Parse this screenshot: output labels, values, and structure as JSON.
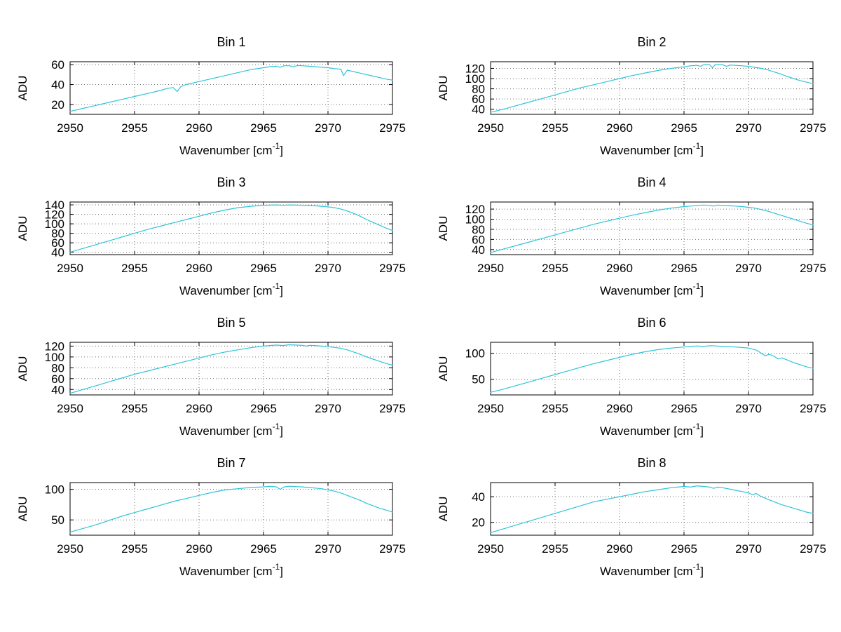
{
  "page": {
    "background": "#ffffff"
  },
  "xlabel_parts": {
    "main": "Wavenumber [cm",
    "sup": "-1",
    "close": "]"
  },
  "chart_data": [
    {
      "type": "line",
      "title": "Bin 1",
      "ylabel": "ADU",
      "xlabel": "Wavenumber [cm⁻¹]",
      "xlim": [
        2950,
        2975
      ],
      "ylim": [
        10,
        63
      ],
      "xticks": [
        2950,
        2955,
        2960,
        2965,
        2970,
        2975
      ],
      "yticks": [
        20,
        40,
        60
      ],
      "grid": true,
      "line_color": "#2cc5d8",
      "x": [
        2950,
        2951,
        2952,
        2953,
        2954,
        2955,
        2956,
        2957,
        2957.5,
        2958,
        2958.3,
        2958.6,
        2959,
        2960,
        2961,
        2962,
        2963,
        2964,
        2964.5,
        2965,
        2965.5,
        2966,
        2966.3,
        2966.6,
        2967,
        2967.3,
        2967.6,
        2968,
        2968.5,
        2969,
        2969.5,
        2970,
        2970.5,
        2971,
        2971.2,
        2971.5,
        2972,
        2972.5,
        2973,
        2973.5,
        2974,
        2974.5,
        2975
      ],
      "y": [
        13,
        16,
        19,
        22,
        25,
        28,
        31,
        34,
        36,
        37,
        33,
        38,
        40,
        43,
        46,
        49,
        52,
        55,
        56,
        57,
        58,
        58.5,
        57.5,
        59,
        59,
        57.8,
        59.2,
        59,
        58.5,
        58,
        57.5,
        57,
        56,
        55.5,
        49,
        54.5,
        53,
        51.5,
        50,
        48.5,
        47,
        45.5,
        44.5
      ]
    },
    {
      "type": "line",
      "title": "Bin 2",
      "ylabel": "ADU",
      "xlabel": "Wavenumber [cm⁻¹]",
      "xlim": [
        2950,
        2975
      ],
      "ylim": [
        30,
        133
      ],
      "xticks": [
        2950,
        2955,
        2960,
        2965,
        2970,
        2975
      ],
      "yticks": [
        40,
        60,
        80,
        100,
        120
      ],
      "grid": true,
      "line_color": "#2cc5d8",
      "x": [
        2950,
        2951,
        2952,
        2953,
        2954,
        2955,
        2956,
        2957,
        2958,
        2959,
        2960,
        2961,
        2962,
        2963,
        2964,
        2965,
        2965.5,
        2966,
        2966.3,
        2966.5,
        2967,
        2967.2,
        2967.4,
        2968,
        2968.3,
        2968.6,
        2969,
        2969.5,
        2970,
        2970.5,
        2971,
        2971.5,
        2972,
        2972.5,
        2973,
        2973.5,
        2974,
        2974.5,
        2975
      ],
      "y": [
        34,
        40,
        47,
        54,
        61,
        68,
        75,
        82,
        88,
        94,
        100,
        106,
        111,
        116,
        120,
        123,
        125,
        126,
        124,
        127,
        127,
        121,
        127,
        127,
        124,
        126.5,
        126,
        125,
        124,
        122,
        120,
        117,
        113,
        109,
        104,
        100,
        96,
        93,
        90
      ]
    },
    {
      "type": "line",
      "title": "Bin 3",
      "ylabel": "ADU",
      "xlabel": "Wavenumber [cm⁻¹]",
      "xlim": [
        2950,
        2975
      ],
      "ylim": [
        35,
        146
      ],
      "xticks": [
        2950,
        2955,
        2960,
        2965,
        2970,
        2975
      ],
      "yticks": [
        40,
        60,
        80,
        100,
        120,
        140
      ],
      "grid": true,
      "line_color": "#2cc5d8",
      "x": [
        2950,
        2951,
        2952,
        2953,
        2954,
        2955,
        2956,
        2957,
        2958,
        2959,
        2960,
        2961,
        2962,
        2963,
        2964,
        2964.5,
        2965,
        2965.5,
        2966,
        2966.5,
        2967,
        2967.5,
        2968,
        2968.5,
        2969,
        2969.5,
        2970,
        2970.5,
        2971,
        2971.5,
        2972,
        2972.5,
        2973,
        2973.5,
        2974,
        2974.5,
        2975
      ],
      "y": [
        40,
        48,
        56,
        64,
        72,
        80,
        88,
        95,
        102,
        109,
        116,
        123,
        129,
        134,
        137,
        138,
        139,
        139.5,
        140,
        139,
        140,
        139.5,
        139,
        138.5,
        138,
        137,
        136,
        134,
        131,
        127,
        122,
        116,
        109,
        103,
        97,
        91,
        86
      ]
    },
    {
      "type": "line",
      "title": "Bin 4",
      "ylabel": "ADU",
      "xlabel": "Wavenumber [cm⁻¹]",
      "xlim": [
        2950,
        2975
      ],
      "ylim": [
        30,
        134
      ],
      "xticks": [
        2950,
        2955,
        2960,
        2965,
        2970,
        2975
      ],
      "yticks": [
        40,
        60,
        80,
        100,
        120
      ],
      "grid": true,
      "line_color": "#2cc5d8",
      "x": [
        2950,
        2951,
        2952,
        2953,
        2954,
        2955,
        2956,
        2957,
        2958,
        2959,
        2960,
        2961,
        2962,
        2963,
        2964,
        2965,
        2965.5,
        2966,
        2966.5,
        2967,
        2967.3,
        2967.6,
        2968,
        2968.5,
        2969,
        2969.5,
        2970,
        2970.5,
        2971,
        2971.5,
        2972,
        2972.5,
        2973,
        2973.5,
        2974,
        2974.5,
        2975
      ],
      "y": [
        34,
        41,
        48,
        55,
        62,
        69,
        76,
        83,
        90,
        96,
        102,
        108,
        113,
        118,
        122,
        125,
        126,
        127,
        128,
        127.5,
        126,
        128,
        127,
        126.5,
        126,
        125,
        123.5,
        122,
        119,
        116,
        112,
        108,
        104,
        100,
        96,
        92,
        89
      ]
    },
    {
      "type": "line",
      "title": "Bin 5",
      "ylabel": "ADU",
      "xlabel": "Wavenumber [cm⁻¹]",
      "xlim": [
        2950,
        2975
      ],
      "ylim": [
        30,
        127
      ],
      "xticks": [
        2950,
        2955,
        2960,
        2965,
        2970,
        2975
      ],
      "yticks": [
        40,
        60,
        80,
        100,
        120
      ],
      "grid": true,
      "line_color": "#2cc5d8",
      "x": [
        2950,
        2951,
        2952,
        2953,
        2954,
        2955,
        2956,
        2957,
        2958,
        2959,
        2960,
        2961,
        2962,
        2963,
        2964,
        2965,
        2965.5,
        2966,
        2966.5,
        2967,
        2967.5,
        2968,
        2968.3,
        2968.6,
        2969,
        2969.5,
        2970,
        2970.5,
        2971,
        2971.5,
        2972,
        2972.5,
        2973,
        2973.5,
        2974,
        2974.5,
        2975
      ],
      "y": [
        33,
        40,
        47,
        54,
        61,
        68,
        74,
        80,
        86,
        92,
        98,
        104,
        109,
        113,
        117,
        120,
        121,
        122,
        121,
        122.5,
        122,
        121.5,
        120,
        121.5,
        121,
        120,
        119,
        117.5,
        116,
        113,
        109,
        105,
        100,
        96,
        92,
        88,
        85
      ]
    },
    {
      "type": "line",
      "title": "Bin 6",
      "ylabel": "ADU",
      "xlabel": "Wavenumber [cm⁻¹]",
      "xlim": [
        2950,
        2975
      ],
      "ylim": [
        20,
        121
      ],
      "xticks": [
        2950,
        2955,
        2960,
        2965,
        2970,
        2975
      ],
      "yticks": [
        50,
        100
      ],
      "grid": true,
      "line_color": "#2cc5d8",
      "x": [
        2950,
        2951,
        2952,
        2953,
        2954,
        2955,
        2956,
        2957,
        2958,
        2959,
        2960,
        2961,
        2962,
        2963,
        2964,
        2965,
        2965.5,
        2966,
        2966.5,
        2967,
        2967.5,
        2968,
        2968.5,
        2969,
        2969.5,
        2970,
        2970.3,
        2970.6,
        2971,
        2971.3,
        2971.6,
        2972,
        2972.3,
        2972.6,
        2973,
        2973.5,
        2974,
        2974.5,
        2975
      ],
      "y": [
        25,
        31,
        38,
        45,
        52,
        59,
        66,
        73,
        80,
        86,
        92,
        98,
        103,
        107,
        110,
        112,
        113,
        114,
        113,
        114.5,
        114,
        113,
        112.5,
        112,
        111,
        110,
        108,
        106,
        100,
        95,
        98,
        94,
        89,
        91,
        87,
        82,
        78,
        74,
        71
      ]
    },
    {
      "type": "line",
      "title": "Bin 7",
      "ylabel": "ADU",
      "xlabel": "Wavenumber [cm⁻¹]",
      "xlim": [
        2950,
        2975
      ],
      "ylim": [
        25,
        111
      ],
      "xticks": [
        2950,
        2955,
        2960,
        2965,
        2970,
        2975
      ],
      "yticks": [
        50,
        100
      ],
      "grid": true,
      "line_color": "#2cc5d8",
      "x": [
        2950,
        2951,
        2952,
        2953,
        2954,
        2955,
        2956,
        2957,
        2958,
        2959,
        2960,
        2961,
        2962,
        2963,
        2964,
        2965,
        2965.5,
        2966,
        2966.3,
        2966.6,
        2967,
        2967.5,
        2968,
        2968.5,
        2969,
        2969.5,
        2970,
        2970.5,
        2971,
        2971.5,
        2972,
        2972.5,
        2973,
        2973.5,
        2974,
        2974.5,
        2975
      ],
      "y": [
        30,
        36,
        42,
        49,
        56,
        62,
        68,
        74,
        80,
        85,
        90,
        95,
        99,
        101,
        103,
        104,
        105,
        104,
        100,
        104,
        105,
        104.5,
        104,
        103,
        102,
        101,
        99,
        97,
        94,
        90,
        86,
        82,
        77,
        73,
        69,
        66,
        63
      ]
    },
    {
      "type": "line",
      "title": "Bin 8",
      "ylabel": "ADU",
      "xlabel": "Wavenumber [cm⁻¹]",
      "xlim": [
        2950,
        2975
      ],
      "ylim": [
        10,
        51
      ],
      "xticks": [
        2950,
        2955,
        2960,
        2965,
        2970,
        2975
      ],
      "yticks": [
        20,
        40
      ],
      "grid": true,
      "line_color": "#2cc5d8",
      "x": [
        2950,
        2951,
        2952,
        2953,
        2954,
        2955,
        2956,
        2957,
        2958,
        2959,
        2960,
        2961,
        2962,
        2963,
        2964,
        2964.5,
        2965,
        2965.5,
        2966,
        2966.5,
        2967,
        2967.3,
        2967.6,
        2968,
        2968.5,
        2969,
        2969.5,
        2970,
        2970.3,
        2970.6,
        2971,
        2971.5,
        2972,
        2972.5,
        2973,
        2973.5,
        2974,
        2974.5,
        2975
      ],
      "y": [
        12,
        15,
        18,
        21,
        24,
        27,
        30,
        33,
        36,
        38,
        40,
        42,
        44,
        45.5,
        47,
        47.5,
        48,
        47.5,
        48.5,
        48,
        47.5,
        46.5,
        47.5,
        47,
        46,
        45,
        44,
        43,
        41.5,
        42.5,
        40,
        38,
        36,
        34,
        32.5,
        31,
        29.5,
        28,
        27
      ]
    }
  ]
}
